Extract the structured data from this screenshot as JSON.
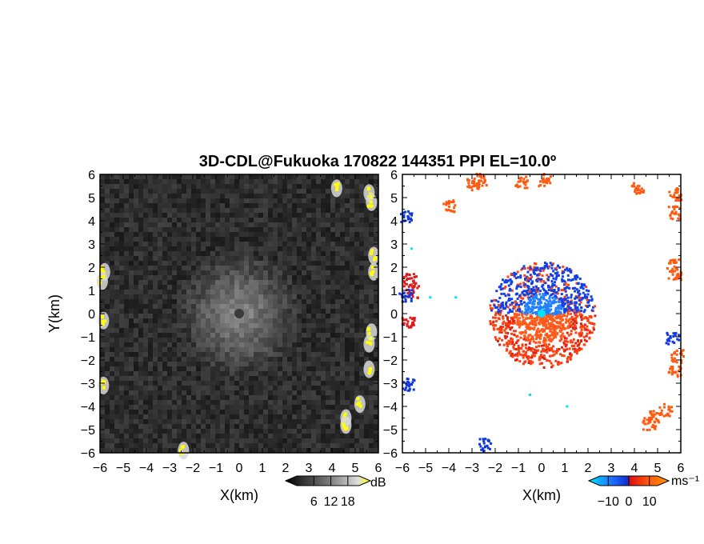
{
  "chart_data": {
    "title": "3D-CDL@Fukuoka 170822 144351 PPI EL=10.0º",
    "panels": [
      {
        "type": "heatmap",
        "variable": "reflectivity",
        "xlabel": "X(km)",
        "ylabel": "Y(km)",
        "xlim": [
          -6,
          6
        ],
        "ylim": [
          -6,
          6
        ],
        "xticks": [
          "−6",
          "−5",
          "−4",
          "−3",
          "−2",
          "−1",
          "0",
          "1",
          "2",
          "3",
          "4",
          "5",
          "6"
        ],
        "yticks": [
          "6",
          "5",
          "4",
          "3",
          "2",
          "1",
          "0",
          "−1",
          "−2",
          "−3",
          "−4",
          "−5",
          "−6"
        ],
        "colormap": "gray-to-yellow",
        "colorbar": {
          "unit": "dB",
          "ticks": [
            "6",
            "12",
            "18"
          ],
          "tick_values": [
            6,
            12,
            18
          ],
          "range": [
            0,
            22
          ]
        },
        "yellow_clusters_km": [
          [
            -5.8,
            1.8
          ],
          [
            -5.9,
            1.4
          ],
          [
            -5.85,
            -0.3
          ],
          [
            -5.85,
            -3.1
          ],
          [
            4.2,
            5.4
          ],
          [
            5.6,
            5.2
          ],
          [
            5.7,
            4.8
          ],
          [
            5.8,
            2.5
          ],
          [
            5.8,
            1.8
          ],
          [
            5.7,
            -0.8
          ],
          [
            5.6,
            -1.3
          ],
          [
            5.6,
            -2.4
          ],
          [
            5.2,
            -3.9
          ],
          [
            4.6,
            -4.5
          ],
          [
            4.6,
            -4.8
          ],
          [
            -2.4,
            -5.9
          ]
        ]
      },
      {
        "type": "heatmap",
        "variable": "doppler_velocity",
        "xlabel": "X(km)",
        "xlim": [
          -6,
          6
        ],
        "ylim": [
          -6,
          6
        ],
        "xticks": [
          "−6",
          "−5",
          "−4",
          "−3",
          "−2",
          "−1",
          "0",
          "1",
          "2",
          "3",
          "4",
          "5",
          "6"
        ],
        "yticks": [
          "6",
          "5",
          "4",
          "3",
          "2",
          "1",
          "0",
          "−1",
          "−2",
          "−3",
          "−4",
          "−5",
          "−6"
        ],
        "colormap": "cyan-blue-red-orange",
        "colorbar": {
          "unit": "ms⁻¹",
          "ticks": [
            "−10",
            "0",
            "10"
          ],
          "tick_values": [
            -10,
            0,
            10
          ],
          "range": [
            -14,
            14
          ]
        },
        "center_cluster": {
          "x": 0,
          "y": 0,
          "radius_km": 2.3,
          "north_half": "blue",
          "south_half": "red"
        },
        "orange_clusters_km": [
          [
            -3.0,
            5.6
          ],
          [
            -2.7,
            5.8
          ],
          [
            -4.0,
            4.7
          ],
          [
            -0.9,
            5.7
          ],
          [
            0.1,
            5.8
          ],
          [
            4.1,
            5.4
          ],
          [
            5.7,
            5.2
          ],
          [
            5.7,
            4.4
          ],
          [
            5.6,
            2.1
          ],
          [
            5.7,
            1.7
          ],
          [
            5.8,
            -1.8
          ],
          [
            5.7,
            -2.4
          ],
          [
            5.3,
            -4.1
          ],
          [
            4.8,
            -4.4
          ],
          [
            4.6,
            -4.7
          ]
        ],
        "red_clusters_km": [
          [
            -5.7,
            1.5
          ],
          [
            -5.6,
            1.0
          ],
          [
            -5.8,
            -0.4
          ]
        ],
        "blue_clusters_km": [
          [
            -5.9,
            4.2
          ],
          [
            -5.8,
            -3.0
          ],
          [
            -5.9,
            0.8
          ],
          [
            5.6,
            -1.0
          ],
          [
            -2.5,
            -5.6
          ]
        ],
        "cyan_points_km": [
          [
            -5.6,
            2.8
          ],
          [
            -4.8,
            0.7
          ],
          [
            -3.7,
            0.7
          ],
          [
            1.1,
            -4.0
          ],
          [
            -0.5,
            -3.5
          ],
          [
            0,
            0
          ]
        ]
      }
    ]
  }
}
